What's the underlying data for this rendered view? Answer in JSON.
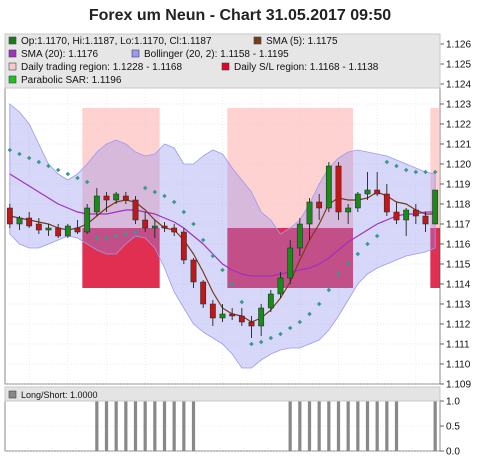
{
  "chart_data": [
    {
      "type": "candlestick",
      "title": "Forex um Neun - Chart 31.05.2017 09:50",
      "ylim": [
        1.109,
        1.1265
      ],
      "y_ticks": [
        "1.109",
        "1.110",
        "1.111",
        "1.112",
        "1.113",
        "1.114",
        "1.115",
        "1.116",
        "1.117",
        "1.118",
        "1.119",
        "1.120",
        "1.121",
        "1.122",
        "1.123",
        "1.124",
        "1.125",
        "1.126"
      ],
      "grid": true,
      "legend_position": "top",
      "legend": [
        {
          "label": "Op:1.1170, Hi:1.1187, Lo:1.1170, Cl:1.1187",
          "color": "#1a7a1a"
        },
        {
          "label": "SMA (5): 1.1175",
          "color": "#7a3b1a"
        },
        {
          "label": "SMA (20): 1.1176",
          "color": "#a030c0"
        },
        {
          "label": "Bollinger (20, 2): 1.1158 - 1.1195",
          "color": "#9a9af0"
        },
        {
          "label": "Daily trading region: 1.1228 - 1.1168",
          "color": "#ffc8c8"
        },
        {
          "label": "Daily S/L region: 1.1168 - 1.1138",
          "color": "#e0002a"
        },
        {
          "label": "Parabolic SAR: 1.1196",
          "color": "#20c020"
        }
      ],
      "candles": [
        {
          "o": 1.1178,
          "h": 1.118,
          "l": 1.1168,
          "c": 1.117
        },
        {
          "o": 1.117,
          "h": 1.1174,
          "l": 1.1167,
          "c": 1.1173
        },
        {
          "o": 1.1173,
          "h": 1.1176,
          "l": 1.1168,
          "c": 1.1169
        },
        {
          "o": 1.117,
          "h": 1.1173,
          "l": 1.1165,
          "c": 1.1167
        },
        {
          "o": 1.1167,
          "h": 1.117,
          "l": 1.1164,
          "c": 1.1168
        },
        {
          "o": 1.1168,
          "h": 1.117,
          "l": 1.1163,
          "c": 1.1164
        },
        {
          "o": 1.1164,
          "h": 1.117,
          "l": 1.1163,
          "c": 1.1169
        },
        {
          "o": 1.1168,
          "h": 1.1172,
          "l": 1.1165,
          "c": 1.1166
        },
        {
          "o": 1.1166,
          "h": 1.118,
          "l": 1.1165,
          "c": 1.1178
        },
        {
          "o": 1.1176,
          "h": 1.1188,
          "l": 1.1174,
          "c": 1.1184
        },
        {
          "o": 1.1184,
          "h": 1.1186,
          "l": 1.1176,
          "c": 1.1182
        },
        {
          "o": 1.1182,
          "h": 1.1186,
          "l": 1.118,
          "c": 1.1185
        },
        {
          "o": 1.1184,
          "h": 1.1186,
          "l": 1.118,
          "c": 1.1182
        },
        {
          "o": 1.1182,
          "h": 1.1184,
          "l": 1.117,
          "c": 1.1172
        },
        {
          "o": 1.1172,
          "h": 1.1176,
          "l": 1.1166,
          "c": 1.1168
        },
        {
          "o": 1.1168,
          "h": 1.1172,
          "l": 1.1163,
          "c": 1.1169
        },
        {
          "o": 1.1169,
          "h": 1.1171,
          "l": 1.1166,
          "c": 1.1168
        },
        {
          "o": 1.1168,
          "h": 1.117,
          "l": 1.1164,
          "c": 1.1166
        },
        {
          "o": 1.1166,
          "h": 1.1168,
          "l": 1.115,
          "c": 1.1152
        },
        {
          "o": 1.1152,
          "h": 1.1153,
          "l": 1.1138,
          "c": 1.1141
        },
        {
          "o": 1.1141,
          "h": 1.1142,
          "l": 1.1128,
          "c": 1.113
        },
        {
          "o": 1.113,
          "h": 1.1132,
          "l": 1.1119,
          "c": 1.1123
        },
        {
          "o": 1.1123,
          "h": 1.113,
          "l": 1.1121,
          "c": 1.1125
        },
        {
          "o": 1.1125,
          "h": 1.1128,
          "l": 1.1122,
          "c": 1.1124
        },
        {
          "o": 1.1124,
          "h": 1.1128,
          "l": 1.1119,
          "c": 1.1121
        },
        {
          "o": 1.1121,
          "h": 1.1124,
          "l": 1.1113,
          "c": 1.1119
        },
        {
          "o": 1.1119,
          "h": 1.113,
          "l": 1.1114,
          "c": 1.1128
        },
        {
          "o": 1.1128,
          "h": 1.1137,
          "l": 1.1126,
          "c": 1.1135
        },
        {
          "o": 1.1135,
          "h": 1.1146,
          "l": 1.1133,
          "c": 1.1143
        },
        {
          "o": 1.1143,
          "h": 1.1162,
          "l": 1.114,
          "c": 1.1158
        },
        {
          "o": 1.1158,
          "h": 1.1173,
          "l": 1.1154,
          "c": 1.117
        },
        {
          "o": 1.117,
          "h": 1.1183,
          "l": 1.1162,
          "c": 1.1181
        },
        {
          "o": 1.1181,
          "h": 1.1185,
          "l": 1.1172,
          "c": 1.1178
        },
        {
          "o": 1.1178,
          "h": 1.1201,
          "l": 1.1176,
          "c": 1.1199
        },
        {
          "o": 1.1199,
          "h": 1.1201,
          "l": 1.1172,
          "c": 1.1176
        },
        {
          "o": 1.1176,
          "h": 1.118,
          "l": 1.117,
          "c": 1.1178
        },
        {
          "o": 1.1178,
          "h": 1.1186,
          "l": 1.1176,
          "c": 1.1185
        },
        {
          "o": 1.1185,
          "h": 1.1196,
          "l": 1.1182,
          "c": 1.1187
        },
        {
          "o": 1.1187,
          "h": 1.1196,
          "l": 1.1184,
          "c": 1.1185
        },
        {
          "o": 1.1185,
          "h": 1.119,
          "l": 1.1174,
          "c": 1.1176
        },
        {
          "o": 1.1176,
          "h": 1.1181,
          "l": 1.117,
          "c": 1.1172
        },
        {
          "o": 1.1172,
          "h": 1.1178,
          "l": 1.1164,
          "c": 1.1177
        },
        {
          "o": 1.1177,
          "h": 1.118,
          "l": 1.117,
          "c": 1.1174
        },
        {
          "o": 1.1174,
          "h": 1.1176,
          "l": 1.1166,
          "c": 1.117
        },
        {
          "o": 1.117,
          "h": 1.1187,
          "l": 1.117,
          "c": 1.1187
        }
      ],
      "sma5": [
        1.1174,
        1.1173,
        1.1172,
        1.1171,
        1.117,
        1.1168,
        1.1167,
        1.1168,
        1.117,
        1.1174,
        1.1178,
        1.1181,
        1.1182,
        1.1181,
        1.1177,
        1.1172,
        1.1168,
        1.1167,
        1.1162,
        1.1155,
        1.1146,
        1.1136,
        1.1128,
        1.1125,
        1.1124,
        1.1121,
        1.1123,
        1.1127,
        1.1133,
        1.1141,
        1.1152,
        1.1162,
        1.117,
        1.118,
        1.1183,
        1.1182,
        1.1182,
        1.1183,
        1.1186,
        1.1184,
        1.1181,
        1.118,
        1.1177,
        1.1175,
        1.1175
      ],
      "sma20": [
        1.1195,
        1.1192,
        1.1189,
        1.1186,
        1.1183,
        1.118,
        1.1178,
        1.1176,
        1.1175,
        1.1175,
        1.1175,
        1.1176,
        1.1177,
        1.1177,
        1.1176,
        1.1175,
        1.1173,
        1.1171,
        1.1168,
        1.1164,
        1.116,
        1.1155,
        1.115,
        1.1147,
        1.1145,
        1.1144,
        1.1144,
        1.1144,
        1.1145,
        1.1146,
        1.1147,
        1.1148,
        1.115,
        1.1153,
        1.1157,
        1.1161,
        1.1164,
        1.1167,
        1.117,
        1.1172,
        1.1174,
        1.1175,
        1.1175,
        1.1176,
        1.1176
      ],
      "bb_upper": [
        1.123,
        1.1226,
        1.122,
        1.121,
        1.12,
        1.1195,
        1.1192,
        1.1195,
        1.12,
        1.1206,
        1.121,
        1.1212,
        1.121,
        1.1206,
        1.1204,
        1.1205,
        1.121,
        1.1208,
        1.12,
        1.12,
        1.1204,
        1.1207,
        1.1205,
        1.1198,
        1.1192,
        1.1186,
        1.1176,
        1.1172,
        1.1165,
        1.1168,
        1.1172,
        1.118,
        1.119,
        1.1198,
        1.1203,
        1.1206,
        1.1207,
        1.1206,
        1.1205,
        1.1204,
        1.1202,
        1.12,
        1.1198,
        1.1196,
        1.1195
      ],
      "bb_lower": [
        1.1165,
        1.116,
        1.1158,
        1.1158,
        1.116,
        1.1162,
        1.1164,
        1.1163,
        1.116,
        1.1157,
        1.1155,
        1.1155,
        1.116,
        1.1164,
        1.1163,
        1.1158,
        1.1148,
        1.1136,
        1.1128,
        1.112,
        1.1116,
        1.1113,
        1.111,
        1.1105,
        1.1098,
        1.1098,
        1.1102,
        1.1105,
        1.1107,
        1.1108,
        1.1108,
        1.111,
        1.1112,
        1.1117,
        1.1124,
        1.1132,
        1.114,
        1.1145,
        1.1148,
        1.115,
        1.1152,
        1.1154,
        1.1155,
        1.1156,
        1.1158
      ],
      "sar": [
        1.1207,
        1.1205,
        1.1203,
        1.1201,
        1.1199,
        1.1197,
        1.1195,
        1.1193,
        1.1191,
        1.1163,
        1.1163,
        1.1164,
        1.1165,
        1.1166,
        1.1188,
        1.1186,
        1.1184,
        1.1181,
        1.1176,
        1.117,
        1.1162,
        1.1154,
        1.1147,
        1.114,
        1.1131,
        1.111,
        1.1111,
        1.1113,
        1.1115,
        1.1118,
        1.1121,
        1.1125,
        1.113,
        1.1137,
        1.1145,
        1.115,
        1.1155,
        1.116,
        1.1164,
        1.1201,
        1.1199,
        1.1197,
        1.1196,
        1.1196,
        1.1196
      ],
      "regions": [
        {
          "from": 8,
          "to": 16,
          "trading": [
            1.1228,
            1.1168
          ],
          "sl": [
            1.1168,
            1.1138
          ]
        },
        {
          "from": 23,
          "to": 36,
          "trading": [
            1.1228,
            1.1168
          ],
          "sl": [
            1.1168,
            1.1138
          ]
        },
        {
          "from": 44,
          "to": 45,
          "trading": [
            1.1228,
            1.1168
          ],
          "sl": [
            1.1168,
            1.1138
          ]
        }
      ]
    },
    {
      "type": "bar",
      "legend": [
        {
          "label": "Long/Short: 1.0000",
          "color": "#888888"
        }
      ],
      "ylim": [
        0.0,
        1.0
      ],
      "y_ticks": [
        "0.0",
        "0.5",
        "1.0"
      ],
      "values": [
        0,
        0,
        0,
        0,
        0,
        0,
        0,
        0,
        0,
        1,
        1,
        1,
        1,
        1,
        1,
        1,
        1,
        1,
        1,
        1,
        0,
        0,
        0,
        0,
        0,
        0,
        0,
        0,
        0,
        1,
        1,
        1,
        1,
        1,
        1,
        1,
        1,
        1,
        1,
        1,
        1,
        0,
        0,
        0,
        1
      ]
    }
  ]
}
